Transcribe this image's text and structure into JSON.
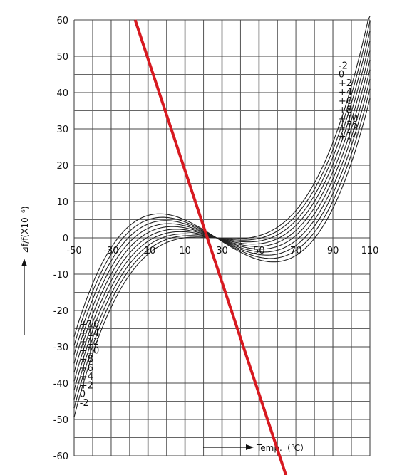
{
  "chart_data": {
    "type": "line",
    "title": "",
    "xlabel": "Temp.（℃）",
    "ylabel": "⊿f/f(X10⁻⁶)",
    "xlim": [
      -50,
      110
    ],
    "ylim": [
      -60,
      60
    ],
    "x_ticks": [
      "-50",
      "-30",
      "-10",
      "10",
      "30",
      "50",
      "70",
      "90",
      "110"
    ],
    "y_ticks": [
      "60",
      "50",
      "40",
      "30",
      "20",
      "10",
      "0",
      "-10",
      "-20",
      "-30",
      "-40",
      "-50",
      "-60"
    ],
    "grid": true,
    "inflection": [
      27,
      0
    ],
    "series": [
      {
        "name": "+16",
        "label_at": "left",
        "k": 16
      },
      {
        "name": "+14",
        "label_at": "left",
        "k": 14
      },
      {
        "name": "+12",
        "label_at": "left",
        "k": 12
      },
      {
        "name": "+10",
        "label_at": "left",
        "k": 10
      },
      {
        "name": "+8",
        "label_at": "left",
        "k": 8
      },
      {
        "name": "+6",
        "label_at": "left",
        "k": 6
      },
      {
        "name": "+4",
        "label_at": "left",
        "k": 4
      },
      {
        "name": "+2",
        "label_at": "left",
        "k": 2
      },
      {
        "name": "0",
        "label_at": "left",
        "k": 0
      },
      {
        "name": "-2",
        "label_at": "left",
        "k": -2
      },
      {
        "name": "-2",
        "label_at": "right",
        "k": -2
      },
      {
        "name": "0",
        "label_at": "right",
        "k": 0
      },
      {
        "name": "+2",
        "label_at": "right",
        "k": 2
      },
      {
        "name": "+4",
        "label_at": "right",
        "k": 4
      },
      {
        "name": "+6",
        "label_at": "right",
        "k": 6
      },
      {
        "name": "+8",
        "label_at": "right",
        "k": 8
      },
      {
        "name": "+10",
        "label_at": "right",
        "k": 10
      },
      {
        "name": "+12",
        "label_at": "right",
        "k": 12
      },
      {
        "name": "+14",
        "label_at": "right",
        "k": 14
      }
    ],
    "annotation_line": {
      "color": "#d71920",
      "points": [
        [
          -17,
          60
        ],
        [
          65,
          -66
        ]
      ]
    }
  }
}
